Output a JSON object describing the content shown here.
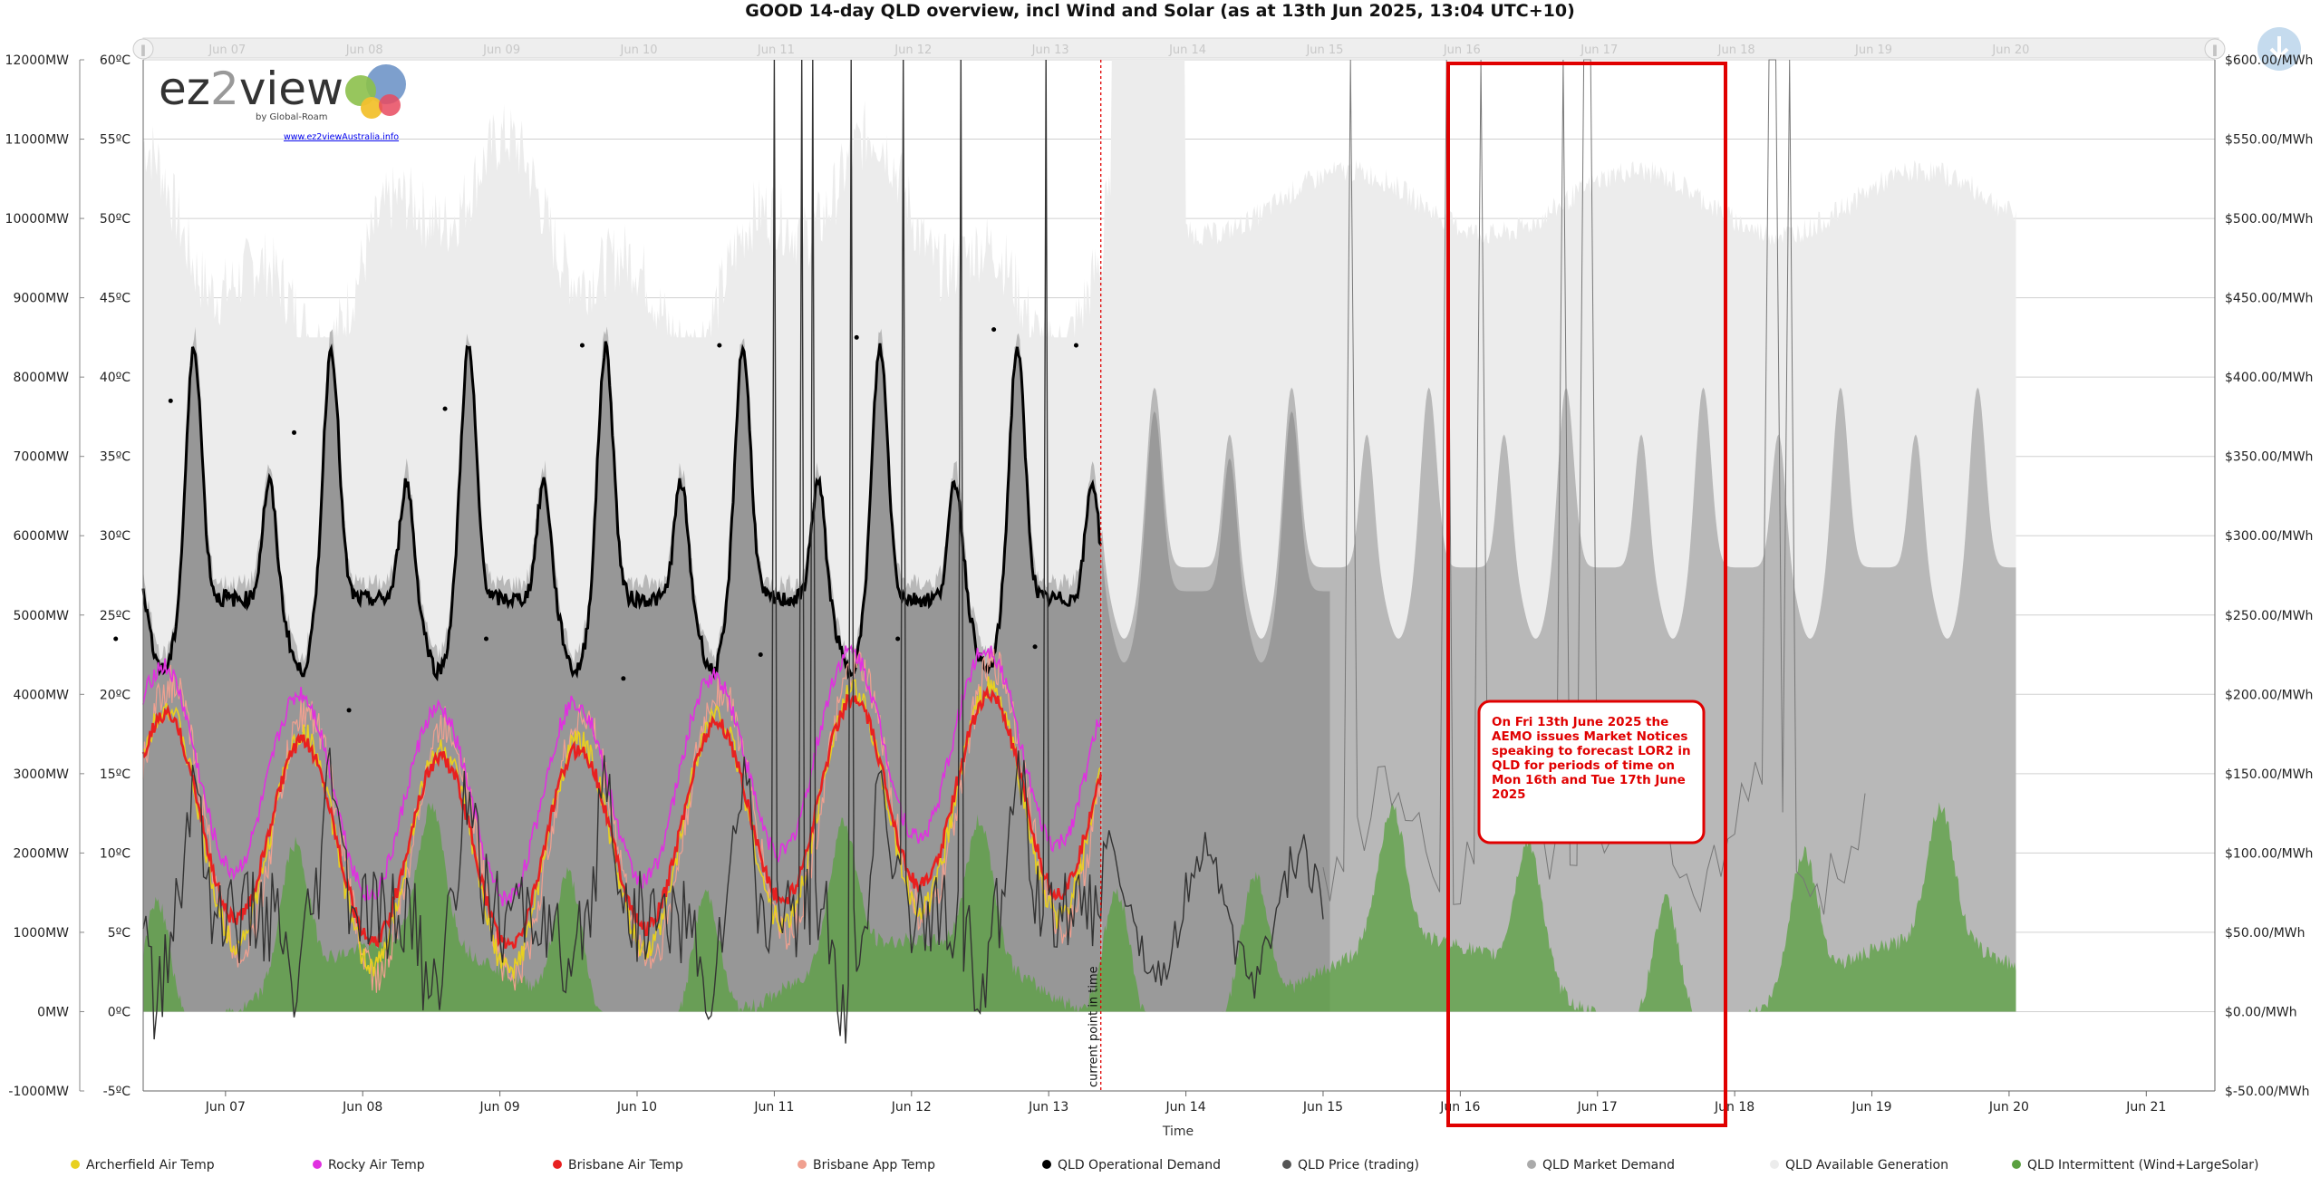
{
  "chart_data": {
    "type": "area",
    "title": "GOOD 14-day QLD overview, incl Wind and Solar (as at 13th Jun 2025, 13:04 UTC+10)",
    "xlabel": "Time",
    "x_ticks": [
      "Jun 07",
      "Jun 08",
      "Jun 09",
      "Jun 10",
      "Jun 11",
      "Jun 12",
      "Jun 13",
      "Jun 14",
      "Jun 15",
      "Jun 16",
      "Jun 17",
      "Jun 18",
      "Jun 19",
      "Jun 20",
      "Jun 21"
    ],
    "navigator_ticks": [
      "Jun 07",
      "Jun 08",
      "Jun 09",
      "Jun 10",
      "Jun 11",
      "Jun 12",
      "Jun 13",
      "Jun 14",
      "Jun 15",
      "Jun 16",
      "Jun 17",
      "Jun 18",
      "Jun 19",
      "Jun 20"
    ],
    "x_range": [
      6.4,
      21.5
    ],
    "current_time": 13.38,
    "current_time_label": "current point in time",
    "axes": {
      "mw": {
        "ticks": [
          "12000MW",
          "11000MW",
          "10000MW",
          "9000MW",
          "8000MW",
          "7000MW",
          "6000MW",
          "5000MW",
          "4000MW",
          "3000MW",
          "2000MW",
          "1000MW",
          "0MW",
          "-1000MW"
        ],
        "range": [
          -1000,
          12000
        ]
      },
      "temp": {
        "ticks": [
          "60ºC",
          "55ºC",
          "50ºC",
          "45ºC",
          "40ºC",
          "35ºC",
          "30ºC",
          "25ºC",
          "20ºC",
          "15ºC",
          "10ºC",
          "5ºC",
          "0ºC",
          "-5ºC"
        ],
        "range": [
          -5,
          60
        ]
      },
      "price": {
        "ticks": [
          "$600.00/MWh",
          "$550.00/MWh",
          "$500.00/MWh",
          "$450.00/MWh",
          "$400.00/MWh",
          "$350.00/MWh",
          "$300.00/MWh",
          "$250.00/MWh",
          "$200.00/MWh",
          "$150.00/MWh",
          "$100.00/MWh",
          "$50.00/MWh",
          "$0.00/MWh",
          "$-50.00/MWh"
        ],
        "range": [
          -50,
          600
        ]
      }
    },
    "series": [
      {
        "name": "Archerfield Air Temp",
        "color": "#e8d020",
        "axis": "temp"
      },
      {
        "name": "Rocky Air Temp",
        "color": "#e030e0",
        "axis": "temp"
      },
      {
        "name": "Brisbane Air Temp",
        "color": "#e82020",
        "axis": "temp"
      },
      {
        "name": "Brisbane App Temp",
        "color": "#f0a090",
        "axis": "temp"
      },
      {
        "name": "QLD Operational Demand",
        "color": "#000000",
        "axis": "mw"
      },
      {
        "name": "QLD Price (trading)",
        "color": "#555555",
        "axis": "price"
      },
      {
        "name": "QLD Market Demand",
        "color": "#aaaaaa",
        "axis": "mw"
      },
      {
        "name": "QLD Available Generation",
        "color": "#ececec",
        "axis": "mw"
      },
      {
        "name": "QLD Intermittent (Wind+LargeSolar)",
        "color": "#5aa040",
        "axis": "mw"
      }
    ],
    "operational_demand_peaks": [
      {
        "x": 6.6,
        "y": 7700
      },
      {
        "x": 7.5,
        "y": 7300
      },
      {
        "x": 8.6,
        "y": 7600
      },
      {
        "x": 9.6,
        "y": 8400
      },
      {
        "x": 10.6,
        "y": 8400
      },
      {
        "x": 11.6,
        "y": 8500
      },
      {
        "x": 12.6,
        "y": 8600
      },
      {
        "x": 13.2,
        "y": 8400
      }
    ],
    "operational_demand_troughs": [
      {
        "x": 6.2,
        "y": 4700
      },
      {
        "x": 7.0,
        "y": 5300
      },
      {
        "x": 7.9,
        "y": 3800
      },
      {
        "x": 8.9,
        "y": 4700
      },
      {
        "x": 9.9,
        "y": 4200
      },
      {
        "x": 10.9,
        "y": 4500
      },
      {
        "x": 11.9,
        "y": 4700
      },
      {
        "x": 12.9,
        "y": 4600
      }
    ],
    "annotation": {
      "text": [
        "On Fri 13th June 2025 the",
        "AEMO issues Market Notices",
        "speaking to forecast LOR2 in",
        "QLD for periods of time on",
        "Mon 16th and Tue 17th June",
        "2025"
      ]
    },
    "logo": {
      "brand": "ez2view",
      "tag": "by Global-Roam",
      "url": "www.ez2viewAustralia.info"
    },
    "grid": true,
    "legend_position": "bottom"
  }
}
